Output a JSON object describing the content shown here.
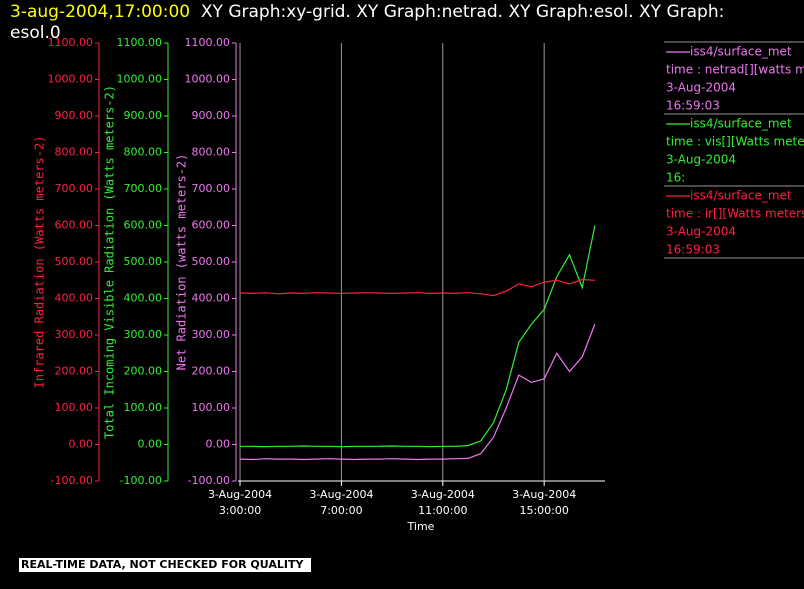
{
  "chart_data": {
    "type": "line",
    "title_time": "3-aug-2004,17:00:00",
    "title": "XY Graph:xy-grid.  XY Graph:netrad.  XY Graph:esol.  XY Graph: esol.0",
    "xlabel": "Time",
    "footnote": "REAL-TIME DATA, NOT CHECKED FOR QUALITY",
    "xlim": [
      2.92,
      17.4
    ],
    "xticks": [
      {
        "value": 3,
        "label": "3-Aug-2004 3:00:00"
      },
      {
        "value": 7,
        "label": "3-Aug-2004 7:00:00"
      },
      {
        "value": 11,
        "label": "3-Aug-2004 11:00:00"
      },
      {
        "value": 15,
        "label": "3-Aug-2004 15:00:00"
      }
    ],
    "grid": true,
    "ylim": [
      -100,
      1100
    ],
    "yticks": [
      {
        "value": -100,
        "label": "-100.00"
      },
      {
        "value": 0,
        "label": "0.00"
      },
      {
        "value": 100,
        "label": "100.00"
      },
      {
        "value": 200,
        "label": "200.00"
      },
      {
        "value": 300,
        "label": "300.00"
      },
      {
        "value": 400,
        "label": "400.00"
      },
      {
        "value": 500,
        "label": "500.00"
      },
      {
        "value": 600,
        "label": "600.00"
      },
      {
        "value": 700,
        "label": "700.00"
      },
      {
        "value": 800,
        "label": "800.00"
      },
      {
        "value": 900,
        "label": "900.00"
      },
      {
        "value": 1000,
        "label": "1000.00"
      },
      {
        "value": 1100,
        "label": "1100.00"
      }
    ],
    "axes": [
      {
        "label": "Infrared Radiation (Watts meters-2)",
        "color": "#ff2040"
      },
      {
        "label": "Total Incoming Visible Radiation (Watts meters-2)",
        "color": "#33ee33"
      },
      {
        "label": "Net Radiation (watts meters-2)",
        "color": "#ee77ee"
      }
    ],
    "x": [
      3,
      3.5,
      4,
      4.5,
      5,
      5.5,
      6,
      6.5,
      7,
      7.5,
      8,
      8.5,
      9,
      9.5,
      10,
      10.5,
      11,
      11.5,
      12,
      12.5,
      13,
      13.5,
      14,
      14.5,
      15,
      15.5,
      16,
      16.5,
      17
    ],
    "series": [
      {
        "name": "iss4/surface_met",
        "color": "#ee77ee",
        "legend_lines": [
          "time : netrad[][watts me",
          "3-Aug-2004",
          "16:59:03"
        ],
        "values": [
          -40,
          -41,
          -39,
          -40,
          -40,
          -41,
          -40,
          -39,
          -40,
          -41,
          -40,
          -40,
          -39,
          -40,
          -41,
          -40,
          -40,
          -39,
          -38,
          -25,
          20,
          100,
          190,
          170,
          180,
          250,
          200,
          240,
          330
        ]
      },
      {
        "name": "iss4/surface_met",
        "color": "#33ee33",
        "legend_lines": [
          "time : vis[][Watts meter",
          "3-Aug-2004",
          "16:"
        ],
        "values": [
          -5,
          -5,
          -6,
          -5,
          -5,
          -4,
          -5,
          -5,
          -6,
          -5,
          -5,
          -5,
          -4,
          -5,
          -5,
          -6,
          -5,
          -5,
          -3,
          10,
          60,
          150,
          280,
          330,
          370,
          460,
          520,
          430,
          600
        ]
      },
      {
        "name": "iss4/surface_met",
        "color": "#ff2040",
        "legend_lines": [
          "time : ir[][Watts meters",
          "3-Aug-2004",
          "16:59:03"
        ],
        "values": [
          415,
          414,
          416,
          413,
          415,
          414,
          416,
          415,
          414,
          415,
          416,
          415,
          414,
          415,
          416,
          414,
          415,
          414,
          416,
          413,
          408,
          420,
          440,
          432,
          445,
          450,
          440,
          452,
          450
        ]
      }
    ]
  }
}
